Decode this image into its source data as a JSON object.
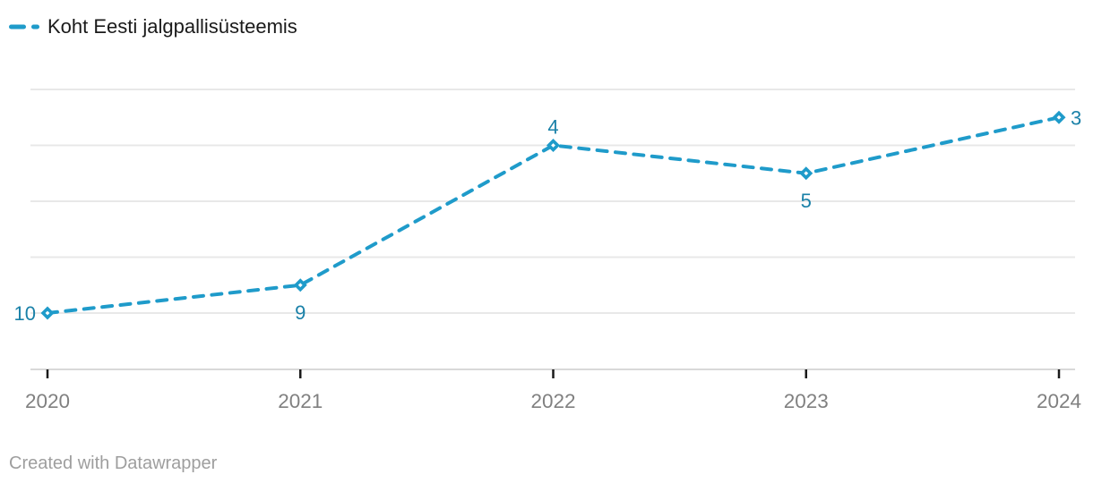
{
  "legend": {
    "label": "Koht Eesti jalgpallisüsteemis",
    "position": "top-left",
    "swatch": "dashed-line"
  },
  "footer": {
    "text": "Created with Datawrapper"
  },
  "colors": {
    "line": "#1f9bca",
    "marker": "#1f9bca",
    "marker_center": "#ffffff",
    "value_label": "#1a81a8",
    "grid": "#e8e8e8",
    "axis": "#d9d9d9",
    "tick": "#1a1a1a",
    "x_label": "#808080",
    "legend_text": "#1a1a1a",
    "footer_text": "#9e9e9e",
    "background": "#ffffff"
  },
  "chart_data": {
    "type": "line",
    "title": "",
    "xlabel": "",
    "ylabel": "",
    "x": [
      2020,
      2021,
      2022,
      2023,
      2024
    ],
    "x_tick_labels": [
      "2020",
      "2021",
      "2022",
      "2023",
      "2024"
    ],
    "series": [
      {
        "name": "Koht Eesti jalgpallisüsteemis",
        "values": [
          10,
          9,
          4,
          5,
          3
        ]
      }
    ],
    "value_labels": [
      "10",
      "9",
      "4",
      "5",
      "3"
    ],
    "label_placements": [
      "left",
      "below",
      "above",
      "below",
      "right"
    ],
    "y_axis": {
      "inverted": true,
      "ylim": [
        1,
        12
      ],
      "gridline_values": [
        2,
        4,
        6,
        8,
        10
      ],
      "tick_labels_shown": false
    },
    "grid": true,
    "legend_position": "top-left",
    "line_style": "dashed",
    "marker": "diamond"
  }
}
